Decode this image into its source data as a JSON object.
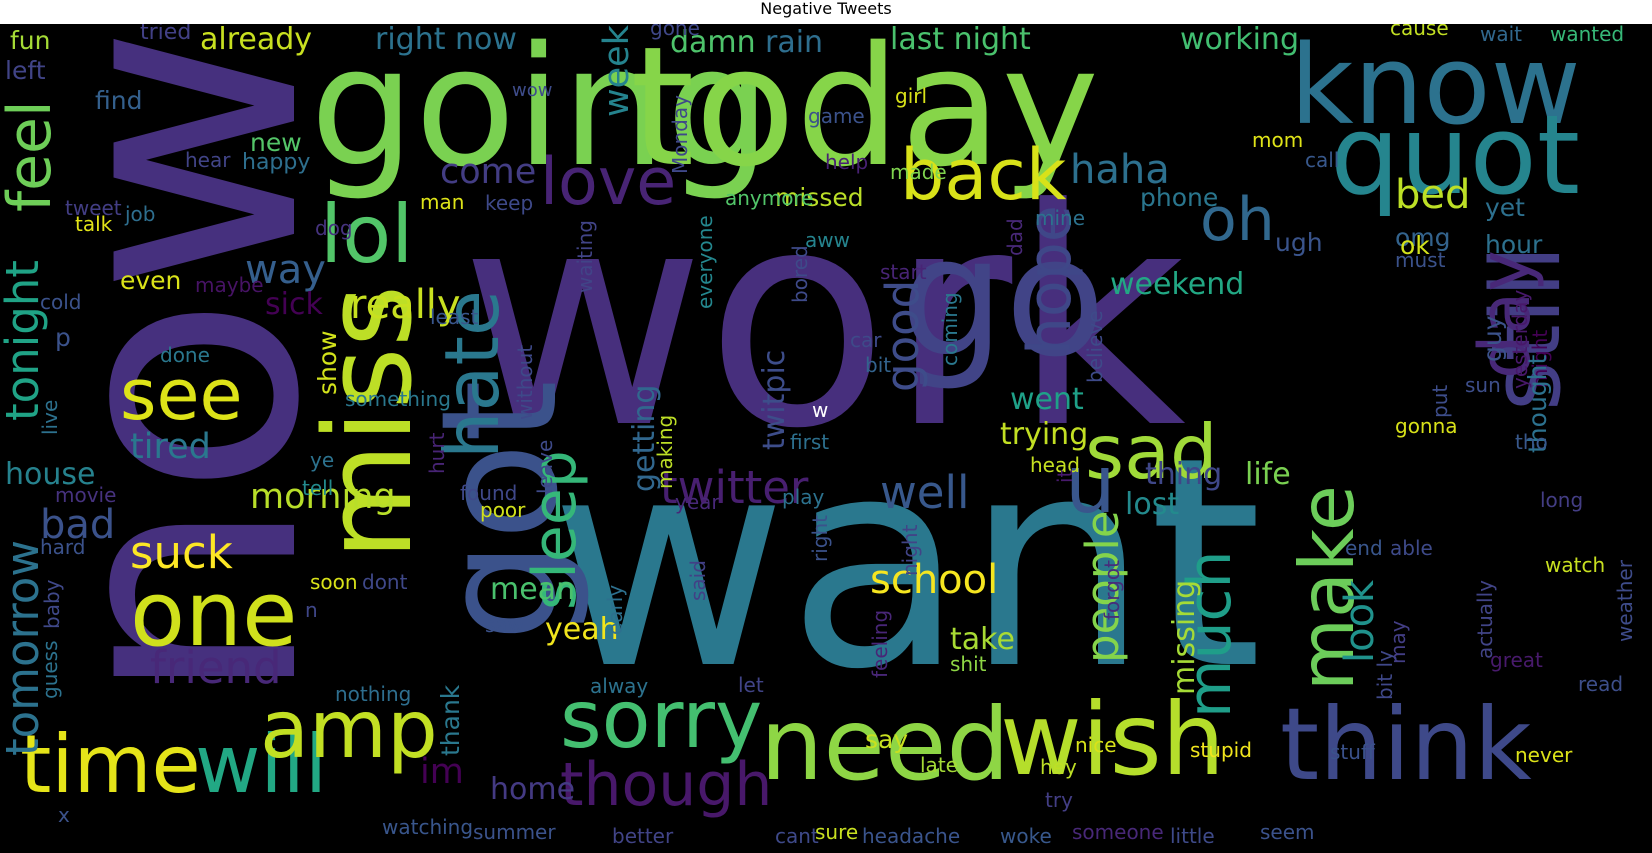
{
  "title": "Negative Tweets",
  "background": "#000000",
  "colormap": "viridis",
  "words": [
    {
      "text": "now",
      "color": "#46307e"
    },
    {
      "text": "work",
      "color": "#472f7d"
    },
    {
      "text": "want",
      "color": "#2a788e"
    },
    {
      "text": "going",
      "color": "#7ad151"
    },
    {
      "text": "today",
      "color": "#86d549"
    },
    {
      "text": "go",
      "color": "#414487"
    },
    {
      "text": "got",
      "color": "#3b528b"
    },
    {
      "text": "miss",
      "color": "#bddf26"
    },
    {
      "text": "know",
      "color": "#2c728e"
    },
    {
      "text": "quot",
      "color": "#25858e"
    },
    {
      "text": "think",
      "color": "#3e4989"
    },
    {
      "text": "wish",
      "color": "#b5de2b"
    },
    {
      "text": "need",
      "color": "#8ed645"
    },
    {
      "text": "still",
      "color": "#433e85"
    },
    {
      "text": "day",
      "color": "#482878"
    },
    {
      "text": "one",
      "color": "#d0e11c"
    },
    {
      "text": "time",
      "color": "#e5e419"
    },
    {
      "text": "will",
      "color": "#22a884"
    },
    {
      "text": "amp",
      "color": "#c2df23"
    },
    {
      "text": "sorry",
      "color": "#44bf70"
    },
    {
      "text": "lol",
      "color": "#52c569"
    },
    {
      "text": "back",
      "color": "#d8e219"
    },
    {
      "text": "love",
      "color": "#482475"
    },
    {
      "text": "sad",
      "color": "#a0da39"
    },
    {
      "text": "hate",
      "color": "#2a788e"
    },
    {
      "text": "make",
      "color": "#6ccd5a"
    },
    {
      "text": "see",
      "color": "#dde318"
    },
    {
      "text": "u",
      "color": "#39568c"
    },
    {
      "text": "oh",
      "color": "#31688e"
    },
    {
      "text": "feel",
      "color": "#6ece58"
    },
    {
      "text": "sleep",
      "color": "#35b779"
    },
    {
      "text": "much",
      "color": "#1f9e89"
    },
    {
      "text": "hope",
      "color": "#3f4788"
    },
    {
      "text": "though",
      "color": "#48186a"
    },
    {
      "text": "twitter",
      "color": "#481f70"
    },
    {
      "text": "friend",
      "color": "#482878"
    },
    {
      "text": "tonight",
      "color": "#20a386"
    },
    {
      "text": "tomorrow",
      "color": "#2c728e"
    },
    {
      "text": "bad",
      "color": "#3b528b"
    },
    {
      "text": "suck",
      "color": "#fde725"
    },
    {
      "text": "good",
      "color": "#3e4c8a"
    },
    {
      "text": "well",
      "color": "#38588c"
    },
    {
      "text": "people",
      "color": "#84d44b"
    },
    {
      "text": "school",
      "color": "#f6e620"
    },
    {
      "text": "look",
      "color": "#20928c"
    },
    {
      "text": "really",
      "color": "#c8e020"
    },
    {
      "text": "way",
      "color": "#355f8d"
    },
    {
      "text": "morning",
      "color": "#b8de29"
    },
    {
      "text": "haha",
      "color": "#2d708e"
    },
    {
      "text": "come",
      "color": "#433d84"
    },
    {
      "text": "bed",
      "color": "#bddf26"
    },
    {
      "text": "sick",
      "color": "#440154"
    },
    {
      "text": "tired",
      "color": "#2a788e"
    },
    {
      "text": "house",
      "color": "#26828e"
    },
    {
      "text": "yeah",
      "color": "#f1e51d"
    },
    {
      "text": "take",
      "color": "#a8db34"
    },
    {
      "text": "missing",
      "color": "#a5db36"
    },
    {
      "text": "im",
      "color": "#440154"
    },
    {
      "text": "mean",
      "color": "#4ac16d"
    },
    {
      "text": "home",
      "color": "#443a83"
    },
    {
      "text": "week",
      "color": "#25838e"
    },
    {
      "text": "twitpic",
      "color": "#3d4d8a"
    },
    {
      "text": "getting",
      "color": "#31678e"
    },
    {
      "text": "weekend",
      "color": "#22a884"
    },
    {
      "text": "went",
      "color": "#1fa188"
    },
    {
      "text": "thing",
      "color": "#3f4788"
    },
    {
      "text": "lost",
      "color": "#238a8d"
    },
    {
      "text": "life",
      "color": "#7ad151"
    },
    {
      "text": "trying",
      "color": "#c2df23"
    },
    {
      "text": "already",
      "color": "#c8e020"
    },
    {
      "text": "right now",
      "color": "#2c728e"
    },
    {
      "text": "damn",
      "color": "#4ec36b"
    },
    {
      "text": "rain",
      "color": "#2e6e8e"
    },
    {
      "text": "last night",
      "color": "#4ac16d"
    },
    {
      "text": "working",
      "color": "#42be71"
    },
    {
      "text": "fun",
      "color": "#a5db36"
    },
    {
      "text": "tried",
      "color": "#424086"
    },
    {
      "text": "left",
      "color": "#414487"
    },
    {
      "text": "find",
      "color": "#34608d"
    },
    {
      "text": "gone",
      "color": "#3f4788"
    },
    {
      "text": "wow",
      "color": "#3e4c8a"
    },
    {
      "text": "cause",
      "color": "#c2df23"
    },
    {
      "text": "wait",
      "color": "#31688e"
    },
    {
      "text": "wanted",
      "color": "#37b878"
    },
    {
      "text": "girl",
      "color": "#d8e219"
    },
    {
      "text": "game",
      "color": "#3b528b"
    },
    {
      "text": "Monday",
      "color": "#3f4889"
    },
    {
      "text": "new",
      "color": "#54c568"
    },
    {
      "text": "happy",
      "color": "#2e6f8e"
    },
    {
      "text": "hear",
      "color": "#414487"
    },
    {
      "text": "help",
      "color": "#482173"
    },
    {
      "text": "made",
      "color": "#7fd34e"
    },
    {
      "text": "mom",
      "color": "#dfe318"
    },
    {
      "text": "call",
      "color": "#38588c"
    },
    {
      "text": "missed",
      "color": "#bade28"
    },
    {
      "text": "anymore",
      "color": "#52c569"
    },
    {
      "text": "phone",
      "color": "#2a768e"
    },
    {
      "text": "man",
      "color": "#dde318"
    },
    {
      "text": "keep",
      "color": "#3e4989"
    },
    {
      "text": "tweet",
      "color": "#433e85"
    },
    {
      "text": "job",
      "color": "#2e6e8e"
    },
    {
      "text": "talk",
      "color": "#e2e418"
    },
    {
      "text": "aww",
      "color": "#25848e"
    },
    {
      "text": "mine",
      "color": "#2c728e"
    },
    {
      "text": "dad",
      "color": "#482878"
    },
    {
      "text": "dog",
      "color": "#46337f"
    },
    {
      "text": "everyone",
      "color": "#24878e"
    },
    {
      "text": "ugh",
      "color": "#3a548c"
    },
    {
      "text": "omg",
      "color": "#33638d"
    },
    {
      "text": "ok",
      "color": "#d2e21b"
    },
    {
      "text": "must",
      "color": "#3b528b"
    },
    {
      "text": "yet",
      "color": "#2d708e"
    },
    {
      "text": "hour",
      "color": "#2d718e"
    },
    {
      "text": "even",
      "color": "#dae319"
    },
    {
      "text": "maybe",
      "color": "#471365"
    },
    {
      "text": "waiting",
      "color": "#414487"
    },
    {
      "text": "bored",
      "color": "#3e4a89"
    },
    {
      "text": "start",
      "color": "#482475"
    },
    {
      "text": "cold",
      "color": "#3b528b"
    },
    {
      "text": "least",
      "color": "#39568c"
    },
    {
      "text": "coming",
      "color": "#2a788e"
    },
    {
      "text": "believe",
      "color": "#3e4a89"
    },
    {
      "text": "yesterday",
      "color": "#48186a"
    },
    {
      "text": "might",
      "color": "#440154"
    },
    {
      "text": "guy",
      "color": "#3b528b"
    },
    {
      "text": "thought",
      "color": "#2c718e"
    },
    {
      "text": "p",
      "color": "#3b528b"
    },
    {
      "text": "done",
      "color": "#2a788e"
    },
    {
      "text": "show",
      "color": "#d2e21b"
    },
    {
      "text": "car",
      "color": "#3e4a89"
    },
    {
      "text": "bit",
      "color": "#33638d"
    },
    {
      "text": "sun",
      "color": "#3d4e8a"
    },
    {
      "text": "something",
      "color": "#2a788e"
    },
    {
      "text": "without",
      "color": "#3e4989"
    },
    {
      "text": "making",
      "color": "#bddf26"
    },
    {
      "text": "w",
      "color": "#ffffff"
    },
    {
      "text": "put",
      "color": "#3d4d8a"
    },
    {
      "text": "first",
      "color": "#2d708e"
    },
    {
      "text": "gonna",
      "color": "#d8e219"
    },
    {
      "text": "tho",
      "color": "#38588c"
    },
    {
      "text": "live",
      "color": "#2d718e"
    },
    {
      "text": "hurt",
      "color": "#482475"
    },
    {
      "text": "ye",
      "color": "#2c728e"
    },
    {
      "text": "tell",
      "color": "#238a8d"
    },
    {
      "text": "leave",
      "color": "#3e4a89"
    },
    {
      "text": "head",
      "color": "#c5e021"
    },
    {
      "text": "it",
      "color": "#481a6c"
    },
    {
      "text": "movie",
      "color": "#46327e"
    },
    {
      "text": "found",
      "color": "#3f4889"
    },
    {
      "text": "poor",
      "color": "#d2e21b"
    },
    {
      "text": "year",
      "color": "#482878"
    },
    {
      "text": "play",
      "color": "#2c728e"
    },
    {
      "text": "right",
      "color": "#3b528b"
    },
    {
      "text": "night",
      "color": "#414487"
    },
    {
      "text": "long",
      "color": "#433d84"
    },
    {
      "text": "hard",
      "color": "#3b528b"
    },
    {
      "text": "baby",
      "color": "#3f4889"
    },
    {
      "text": "guess",
      "color": "#2c728e"
    },
    {
      "text": "soon",
      "color": "#d8e219"
    },
    {
      "text": "dont",
      "color": "#3f4889"
    },
    {
      "text": "said",
      "color": "#424086"
    },
    {
      "text": "early",
      "color": "#2d708e"
    },
    {
      "text": "forgot",
      "color": "#472d7b"
    },
    {
      "text": "end",
      "color": "#39568c"
    },
    {
      "text": "able",
      "color": "#3e4a89"
    },
    {
      "text": "watch",
      "color": "#c8e020"
    },
    {
      "text": "weather",
      "color": "#3e4c8a"
    },
    {
      "text": "actually",
      "color": "#414487"
    },
    {
      "text": "n",
      "color": "#3f4788"
    },
    {
      "text": "saw",
      "color": "#3b528b"
    },
    {
      "text": "feeling",
      "color": "#482677"
    },
    {
      "text": "shit",
      "color": "#8ed645"
    },
    {
      "text": "bit ly",
      "color": "#3f4889"
    },
    {
      "text": "may",
      "color": "#433e85"
    },
    {
      "text": "great",
      "color": "#481a6c"
    },
    {
      "text": "read",
      "color": "#3d4e8a"
    },
    {
      "text": "let",
      "color": "#414487"
    },
    {
      "text": "alway",
      "color": "#2c728e"
    },
    {
      "text": "thank",
      "color": "#2a788e"
    },
    {
      "text": "nothing",
      "color": "#2e6e8e"
    },
    {
      "text": "say",
      "color": "#c8e020"
    },
    {
      "text": "late",
      "color": "#a5db36"
    },
    {
      "text": "nice",
      "color": "#d8e219"
    },
    {
      "text": "stupid",
      "color": "#f1e51d"
    },
    {
      "text": "stuff",
      "color": "#3b528b"
    },
    {
      "text": "never",
      "color": "#dde318"
    },
    {
      "text": "hey",
      "color": "#bddf26"
    },
    {
      "text": "try",
      "color": "#433e85"
    },
    {
      "text": "x",
      "color": "#3b528b"
    },
    {
      "text": "watching",
      "color": "#39568c"
    },
    {
      "text": "summer",
      "color": "#3b528b"
    },
    {
      "text": "better",
      "color": "#414487"
    },
    {
      "text": "cant",
      "color": "#3e4989"
    },
    {
      "text": "sure",
      "color": "#c8e020"
    },
    {
      "text": "headache",
      "color": "#3a548c"
    },
    {
      "text": "woke",
      "color": "#38588c"
    },
    {
      "text": "someone",
      "color": "#482878"
    },
    {
      "text": "little",
      "color": "#3e4a89"
    },
    {
      "text": "seem",
      "color": "#3b528b"
    }
  ]
}
